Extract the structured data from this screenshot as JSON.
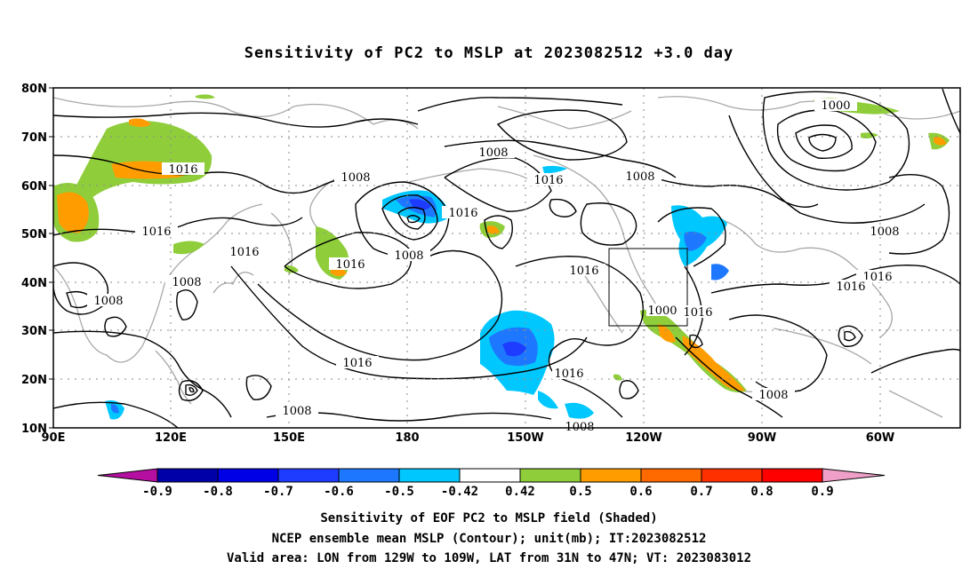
{
  "title": "Sensitivity of PC2 to MSLP at 2023082512 +3.0 day",
  "latitude_labels": [
    "80N",
    "70N",
    "60N",
    "50N",
    "40N",
    "30N",
    "20N",
    "10N"
  ],
  "longitude_labels": [
    "90E",
    "120E",
    "150E",
    "180",
    "150W",
    "120W",
    "90W",
    "60W"
  ],
  "contour_labels": [
    "1000",
    "1008",
    "1008",
    "1008",
    "1008",
    "1008",
    "1008",
    "1008",
    "1008",
    "1008",
    "1016",
    "1016",
    "1016",
    "1016",
    "1016",
    "1016",
    "1016",
    "1016",
    "1016",
    "1016",
    "1016",
    "1000",
    "1008"
  ],
  "valid_area": {
    "lon_min": "129W",
    "lon_max": "109W",
    "lat_min": "31N",
    "lat_max": "47N"
  },
  "colorbar": {
    "labels": [
      "-0.9",
      "-0.8",
      "-0.7",
      "-0.6",
      "-0.5",
      "-0.42",
      "0.42",
      "0.5",
      "0.6",
      "0.7",
      "0.8",
      "0.9"
    ],
    "colors": [
      "#b40fa0",
      "#0000a8",
      "#0000e6",
      "#1e3cff",
      "#1e78ff",
      "#00c8ff",
      "#ffffff",
      "#8fce3a",
      "#ff9d00",
      "#ff6a00",
      "#ff3000",
      "#ff0000",
      "#f0a0c8"
    ]
  },
  "caption": [
    "Sensitivity of EOF PC2 to MSLP field (Shaded)",
    "NCEP ensemble mean MSLP (Contour); unit(mb); IT:2023082512",
    "Valid area: LON from 129W to 109W, LAT from 31N to 47N; VT: 2023083012"
  ]
}
